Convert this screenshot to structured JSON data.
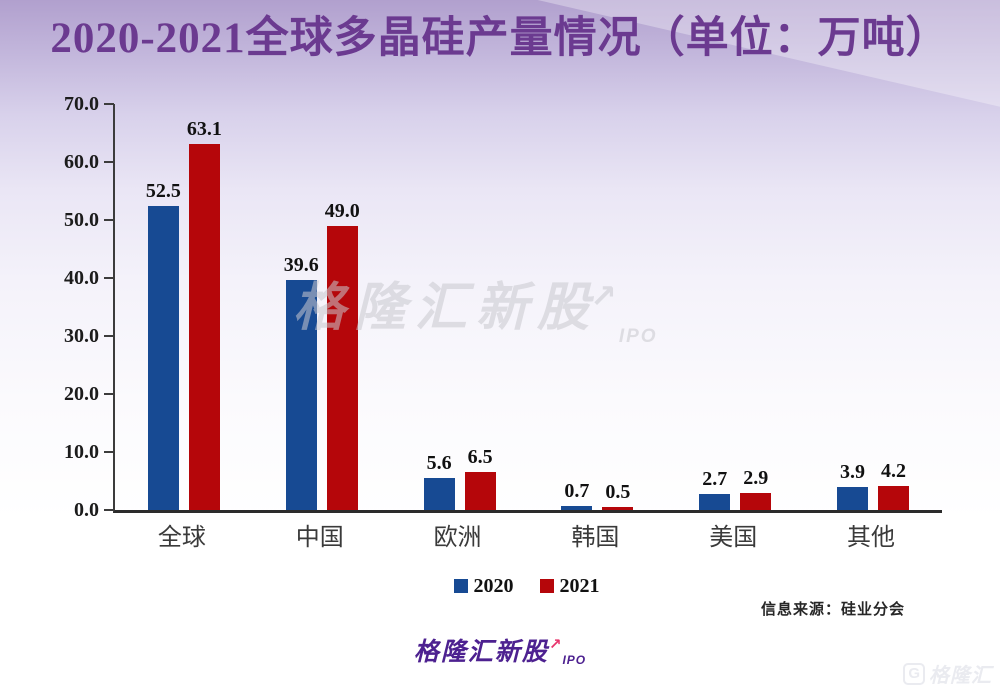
{
  "chart_data": {
    "type": "bar",
    "title": "2020-2021全球多晶硅产量情况（单位：万吨）",
    "categories": [
      "全球",
      "中国",
      "欧洲",
      "韩国",
      "美国",
      "其他"
    ],
    "series": [
      {
        "name": "2020",
        "color": "#174a93",
        "values": [
          52.5,
          39.6,
          5.6,
          0.7,
          2.7,
          3.9
        ]
      },
      {
        "name": "2021",
        "color": "#b5060a",
        "values": [
          63.1,
          49.0,
          6.5,
          0.5,
          2.9,
          4.2
        ]
      }
    ],
    "ylim": [
      0,
      70
    ],
    "ytick_step": 10,
    "ytick_labels": [
      "0.0",
      "10.0",
      "20.0",
      "30.0",
      "40.0",
      "50.0",
      "60.0",
      "70.0"
    ],
    "value_label_decimals": 1,
    "legend_position": "bottom",
    "grid": false,
    "xlabel": "",
    "ylabel": ""
  },
  "colors": {
    "title": "#6b3a90",
    "bar_2020": "#174a93",
    "bar_2021": "#b5060a",
    "axis": "#3c3c3c",
    "background_top": "#b1a0ce"
  },
  "watermark": {
    "text": "格隆汇新股",
    "arrow": "↗",
    "suffix": "IPO"
  },
  "source_note": "信息来源：硅业分会",
  "footer_logo": {
    "text": "格隆汇新股",
    "arrow": "↗",
    "suffix": "IPO"
  },
  "corner_logo": {
    "glyph": "G",
    "text": "格隆汇"
  }
}
